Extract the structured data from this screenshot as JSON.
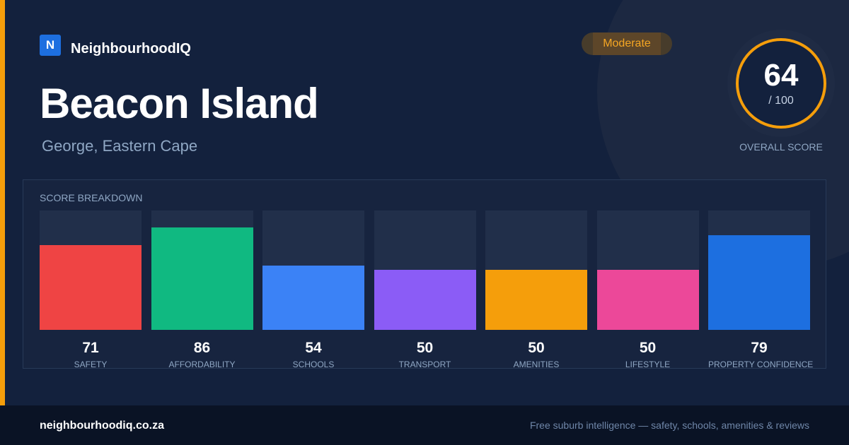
{
  "brand": {
    "logo_letter": "N",
    "name": "NeighbourhoodIQ"
  },
  "place": {
    "name": "Beacon Island",
    "region": "George, Eastern Cape"
  },
  "rating_badge": "Moderate",
  "overall": {
    "score": 64,
    "score_text": "64",
    "max_text": "/ 100",
    "label": "OVERALL SCORE",
    "ring_color": "#f59e0b"
  },
  "breakdown": {
    "heading": "SCORE BREAKDOWN",
    "max": 100,
    "items": [
      {
        "label": "SAFETY",
        "value": 71,
        "value_text": "71",
        "color": "#ef4444"
      },
      {
        "label": "AFFORDABILITY",
        "value": 86,
        "value_text": "86",
        "color": "#10b981"
      },
      {
        "label": "SCHOOLS",
        "value": 54,
        "value_text": "54",
        "color": "#3b82f6"
      },
      {
        "label": "TRANSPORT",
        "value": 50,
        "value_text": "50",
        "color": "#8b5cf6"
      },
      {
        "label": "AMENITIES",
        "value": 50,
        "value_text": "50",
        "color": "#f59e0b"
      },
      {
        "label": "LIFESTYLE",
        "value": 50,
        "value_text": "50",
        "color": "#ec4899"
      },
      {
        "label": "PROPERTY CONFIDENCE",
        "value": 79,
        "value_text": "79",
        "color": "#1d6fe0"
      }
    ]
  },
  "footer": {
    "domain": "neighbourhoodiq.co.za",
    "tagline": "Free suburb intelligence — safety, schools, amenities & reviews"
  },
  "colors": {
    "accent": "#f59e0b",
    "background": "#13213d",
    "brand": "#1d6fe0"
  }
}
